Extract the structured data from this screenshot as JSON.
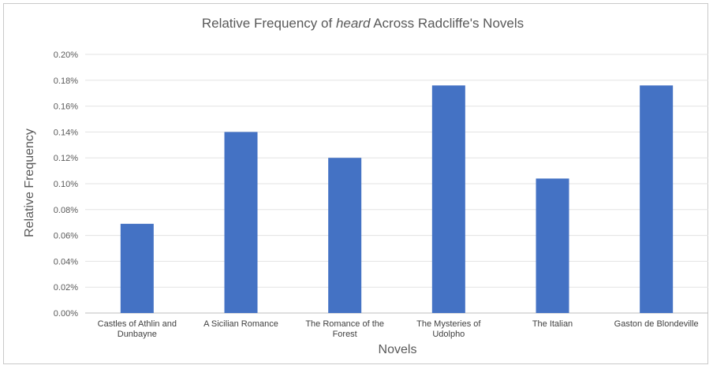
{
  "chart_data": {
    "type": "bar",
    "title_parts": [
      "Relative Frequency of ",
      "heard",
      " Across Radcliffe's Novels"
    ],
    "xlabel": "Novels",
    "ylabel": "Relative Frequency",
    "ylim": [
      0,
      0.2
    ],
    "yticks": [
      "0.00%",
      "0.02%",
      "0.04%",
      "0.06%",
      "0.08%",
      "0.10%",
      "0.12%",
      "0.14%",
      "0.16%",
      "0.18%",
      "0.20%"
    ],
    "categories": [
      [
        "Castles of Athlin and",
        "Dunbayne"
      ],
      [
        "A Sicilian Romance"
      ],
      [
        "The Romance of the",
        "Forest"
      ],
      [
        "The Mysteries of",
        "Udolpho"
      ],
      [
        "The Italian"
      ],
      [
        "Gaston de Blondeville"
      ]
    ],
    "values": [
      0.069,
      0.14,
      0.12,
      0.176,
      0.104,
      0.176
    ],
    "grid": true,
    "legend": "none",
    "bar_color": "#4472C4"
  }
}
